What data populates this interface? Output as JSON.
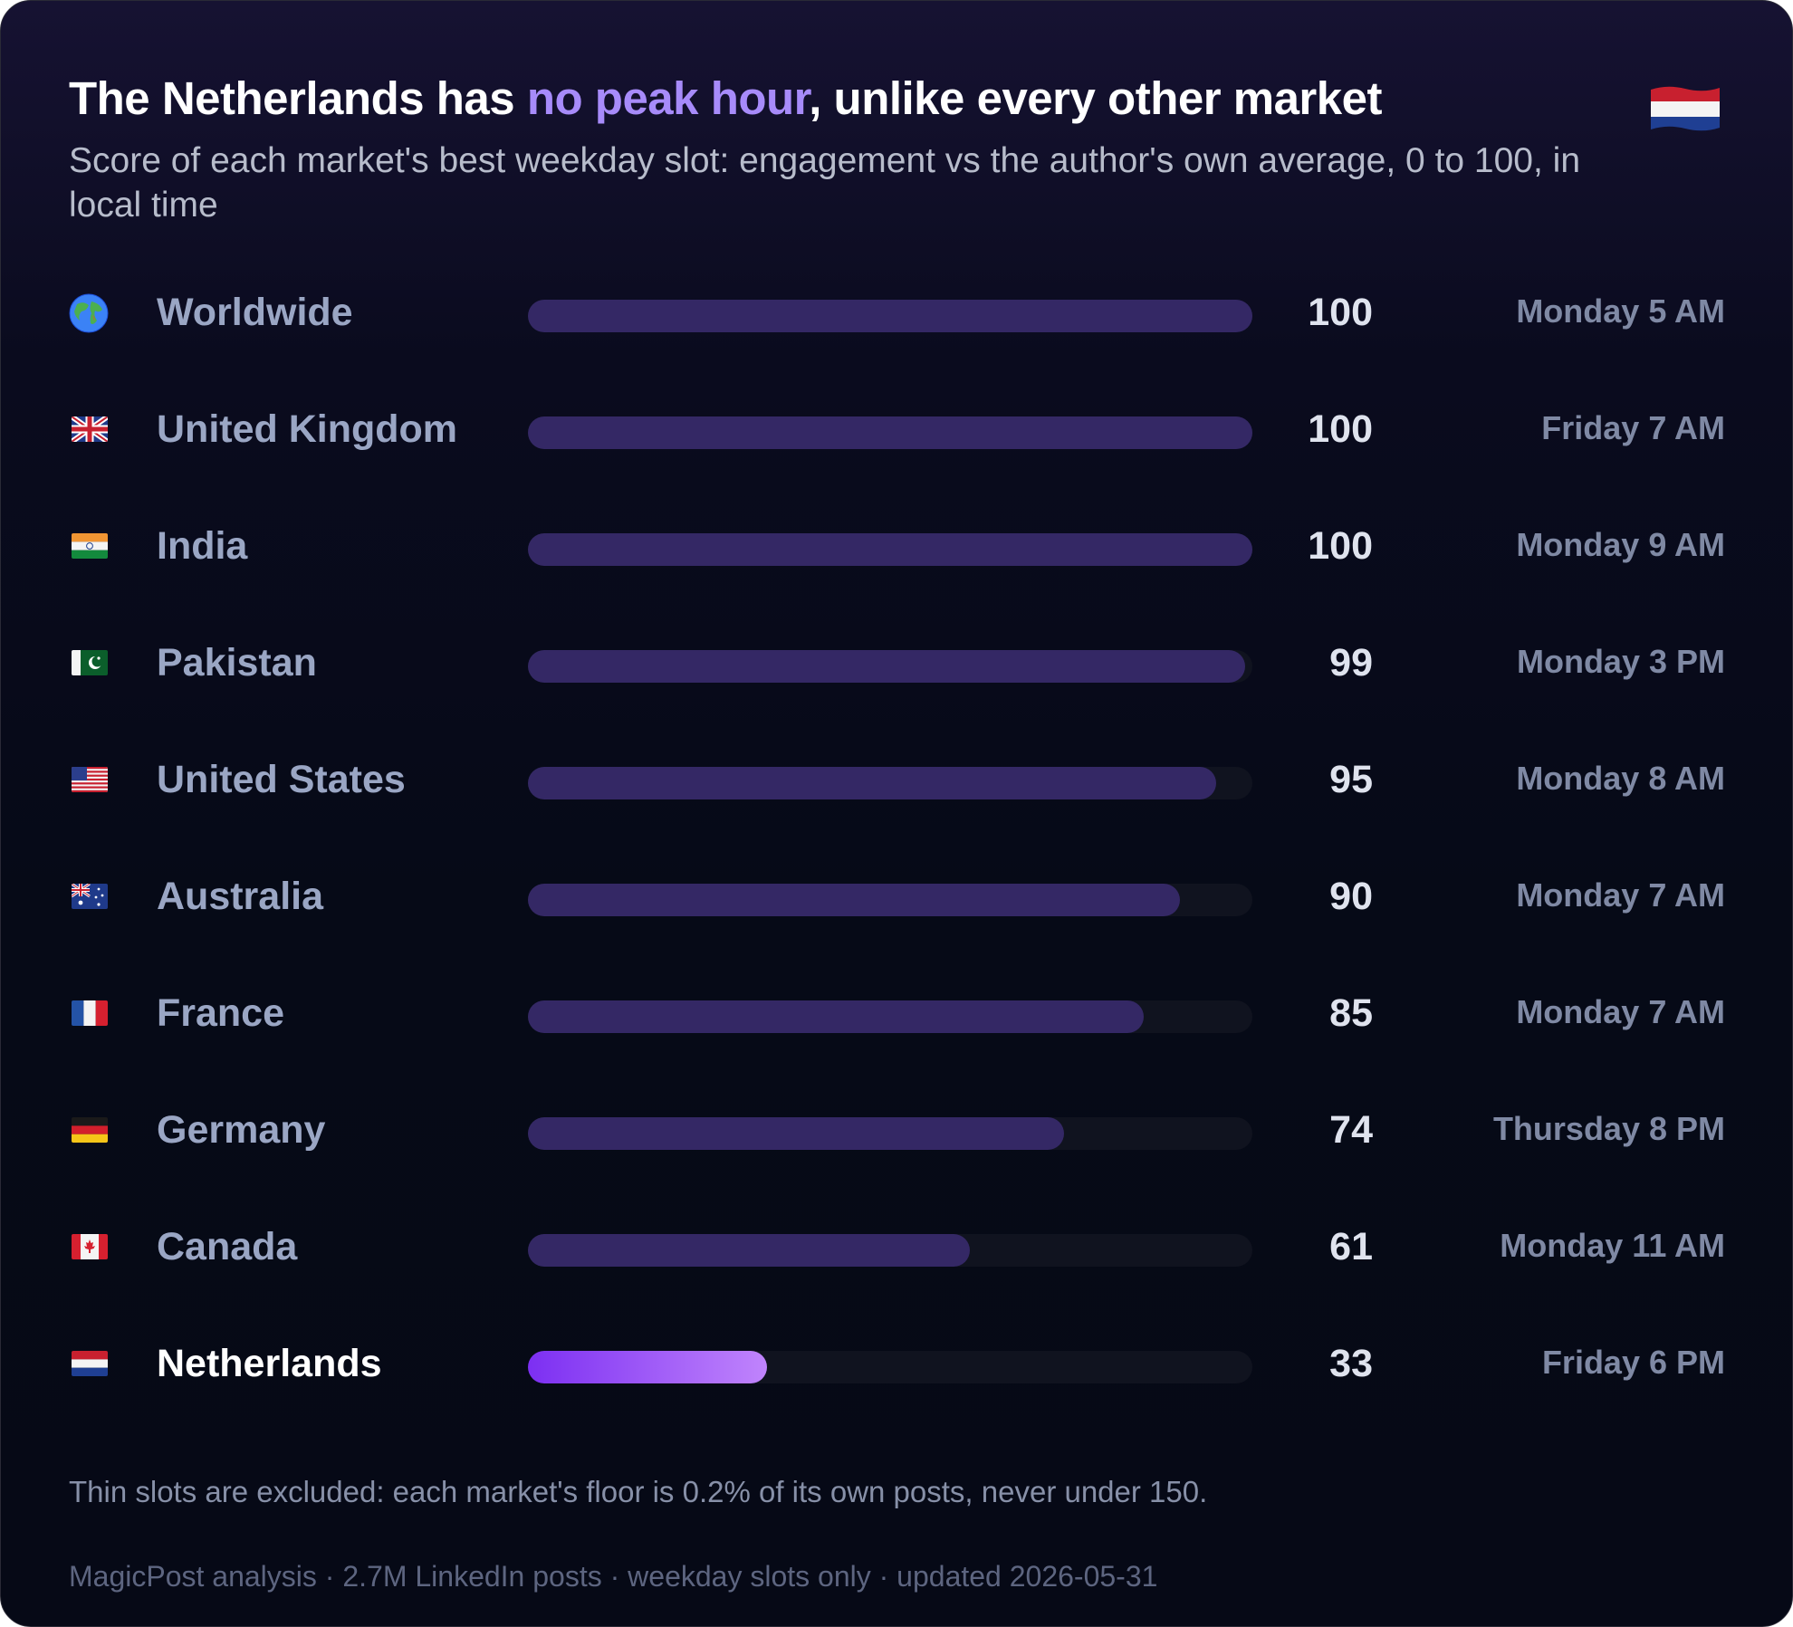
{
  "title": {
    "before": "The Netherlands has ",
    "highlight": "no peak hour",
    "after": ", unlike every other market"
  },
  "subtitle": "Score of each market's best weekday slot: engagement vs the author's own average, 0 to 100, in local time",
  "corner_flag_icon": "netherlands-flag-icon",
  "chart_data": {
    "type": "bar",
    "orientation": "horizontal",
    "xlim": [
      0,
      100
    ],
    "categories": [
      "Worldwide",
      "United Kingdom",
      "India",
      "Pakistan",
      "United States",
      "Australia",
      "France",
      "Germany",
      "Canada",
      "Netherlands"
    ],
    "values": [
      100,
      100,
      100,
      99,
      95,
      90,
      85,
      74,
      61,
      33
    ],
    "best_slots": [
      "Monday 5 AM",
      "Friday 7 AM",
      "Monday 9 AM",
      "Monday 3 PM",
      "Monday 8 AM",
      "Monday 7 AM",
      "Monday 7 AM",
      "Thursday 8 PM",
      "Monday 11 AM",
      "Friday 6 PM"
    ],
    "flag_icons": [
      "globe-icon",
      "uk-flag-icon",
      "india-flag-icon",
      "pakistan-flag-icon",
      "us-flag-icon",
      "australia-flag-icon",
      "france-flag-icon",
      "germany-flag-icon",
      "canada-flag-icon",
      "netherlands-flag-icon"
    ],
    "highlighted": "Netherlands",
    "colors": {
      "bar": "#342865",
      "track": "#10131f",
      "highlight_start": "#7c2ff2",
      "highlight_end": "#c084fc",
      "title_highlight": "#a78bfa"
    }
  },
  "note": "Thin slots are excluded: each market's floor is 0.2% of its own posts, never under 150.",
  "source": "MagicPost analysis · 2.7M LinkedIn posts · weekday slots only · updated 2026-05-31"
}
